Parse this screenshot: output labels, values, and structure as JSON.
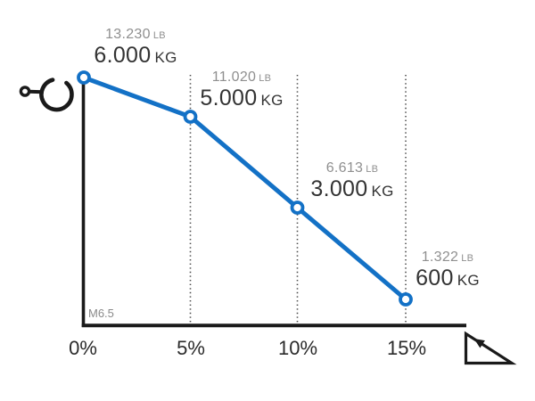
{
  "chart_data": {
    "type": "line",
    "title": "",
    "xlabel": "gradient percent",
    "categories": [
      "0%",
      "5%",
      "10%",
      "15%"
    ],
    "series": [
      {
        "name": "load_kg",
        "values": [
          6000,
          5000,
          3000,
          600
        ]
      },
      {
        "name": "load_lb",
        "values": [
          13230,
          11020,
          6613,
          1322
        ]
      }
    ],
    "points": [
      {
        "category": "0%",
        "lb_value": "13.230",
        "lb_unit": "LB",
        "kg_value": "6.000",
        "kg_unit": "KG"
      },
      {
        "category": "5%",
        "lb_value": "11.020",
        "lb_unit": "LB",
        "kg_value": "5.000",
        "kg_unit": "KG"
      },
      {
        "category": "10%",
        "lb_value": "6.613",
        "lb_unit": "LB",
        "kg_value": "3.000",
        "kg_unit": "KG"
      },
      {
        "category": "15%",
        "lb_value": "1.322",
        "lb_unit": "LB",
        "kg_value": "600",
        "kg_unit": "KG"
      }
    ],
    "note": "M6.5",
    "line_color": "#1371c6",
    "axis_color": "#1a1a1a",
    "grid_color": "#4a4a4a",
    "legend": "none",
    "grid": "vertical dotted lines at 5%, 10%, 15%"
  },
  "icons": {
    "hook": "crane-hook-icon",
    "slope": "gradient-slope-arrow-icon"
  }
}
